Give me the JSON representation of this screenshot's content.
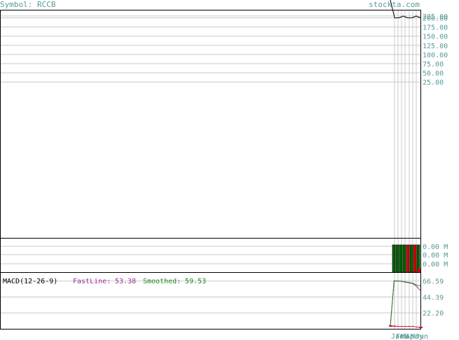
{
  "header": {
    "symbol_label": "Symbol: RCCB",
    "site": "stockta.com"
  },
  "colors": {
    "panel_border": "#000000",
    "grid": "#c8c8c8",
    "axis_text": "#5a9a9a",
    "price_line": "#000000",
    "volume_up": "#006400",
    "volume_down": "#dd0000",
    "fastline": "#993399",
    "smoothed": "#228822",
    "histogram": "#e0003c"
  },
  "chart_data": [
    {
      "type": "line",
      "panel": "price",
      "ytick_labels": [
        "205.00",
        "200.00",
        "175.00",
        "150.00",
        "125.00",
        "100.00",
        "75.00",
        "50.00",
        "25.00"
      ],
      "yticks": [
        205,
        200,
        175,
        150,
        125,
        100,
        75,
        50,
        25
      ],
      "ylim": [
        -400,
        220
      ],
      "series": [
        {
          "values": [
            600,
            200,
            200,
            205,
            200,
            200,
            205,
            200
          ]
        }
      ]
    },
    {
      "type": "bar",
      "panel": "volume",
      "ytick_labels": [
        "0.00 M",
        "0.00 M",
        "0.00 M"
      ],
      "values": [
        1,
        1,
        1,
        1,
        1,
        1,
        1,
        1
      ],
      "colors": [
        "green",
        "green",
        "green",
        "green",
        "red",
        "green",
        "red",
        "green"
      ]
    },
    {
      "type": "line",
      "panel": "macd",
      "title": "MACD(12-26-9)",
      "fastline_label": "FastLine:",
      "fastline_value": "53.38",
      "smoothed_label": "Smoothed:",
      "smoothed_value": "59.53",
      "ytick_labels": [
        "66.59",
        "44.39",
        "22.20"
      ],
      "yticks": [
        66.59,
        44.39,
        22.2
      ],
      "ylim": [
        0,
        78
      ],
      "series": [
        {
          "name": "FastLine",
          "values": [
            5,
            66.59,
            66.59,
            66,
            65,
            64,
            63,
            59,
            53.38
          ]
        },
        {
          "name": "Smoothed",
          "values": [
            3,
            67,
            66.8,
            66.4,
            65.5,
            64.5,
            63.5,
            61,
            59.53
          ]
        }
      ],
      "histogram": [
        2,
        1.5,
        1,
        0.8,
        0.5,
        0.4,
        0.3,
        -1,
        -2
      ]
    }
  ],
  "date_labels": [
    "Jan",
    "Feb",
    "Mar",
    "Apr",
    "May",
    "Jun"
  ]
}
